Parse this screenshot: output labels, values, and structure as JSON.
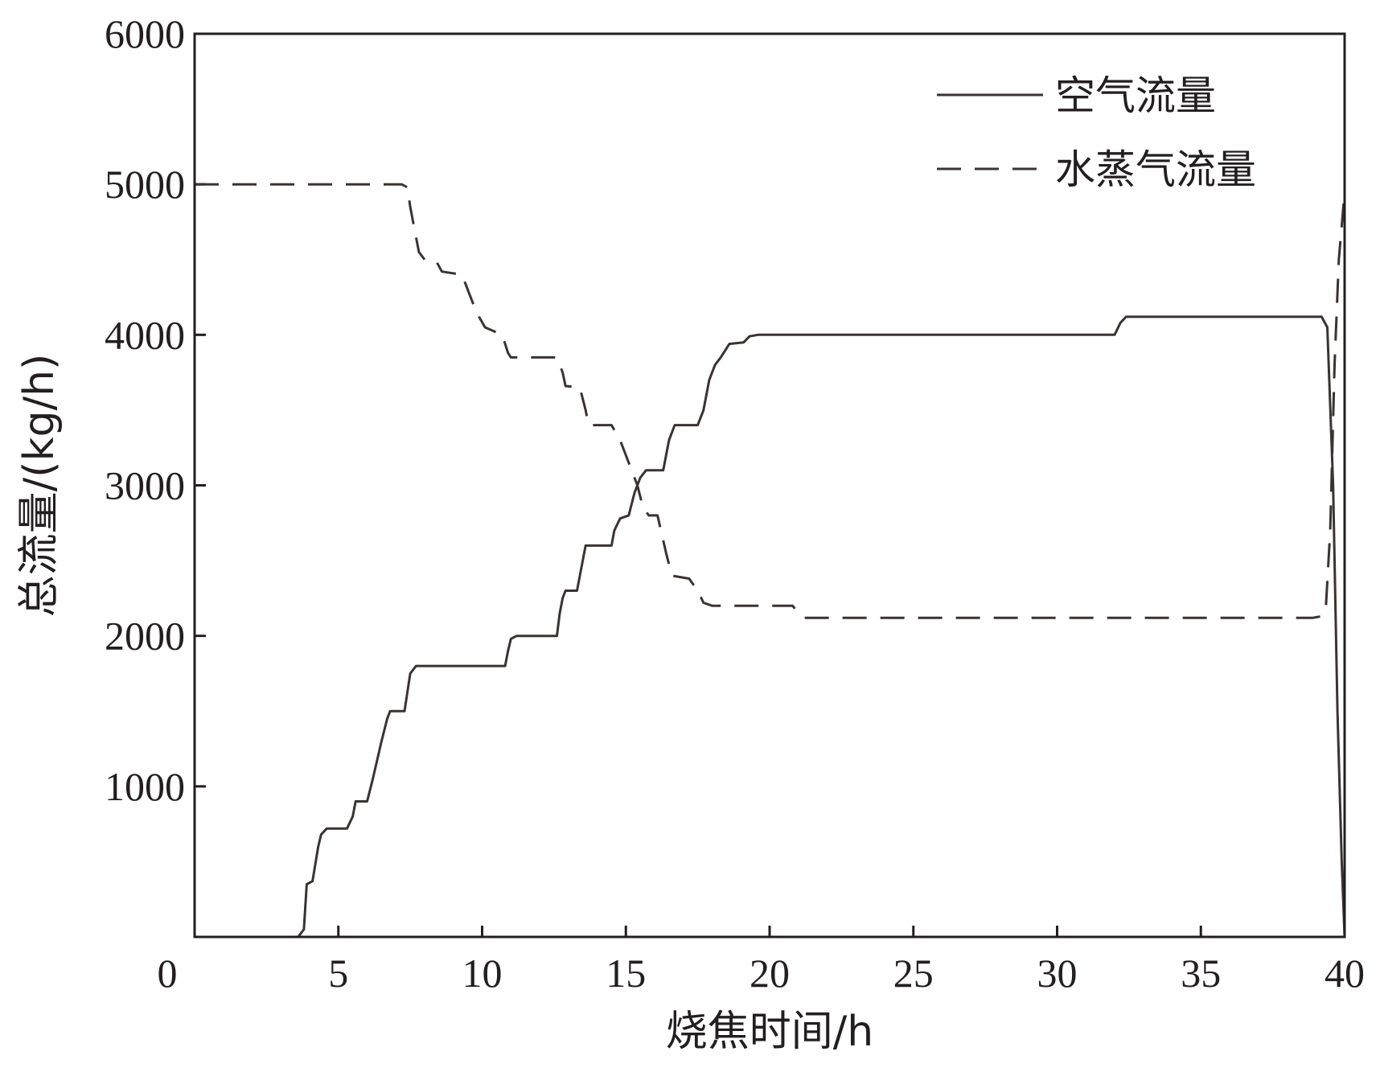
{
  "chart_data": {
    "type": "line",
    "title": "",
    "xlabel": "烧焦时间/h",
    "ylabel": "总流量/(kg/h)",
    "xlim": [
      0,
      40
    ],
    "ylim": [
      0,
      6000
    ],
    "x_ticks": [
      "0",
      "5",
      "10",
      "15",
      "20",
      "25",
      "30",
      "35",
      "40"
    ],
    "y_ticks": [
      "1000",
      "2000",
      "3000",
      "4000",
      "5000",
      "6000"
    ],
    "grid": false,
    "legend_position": "top-right",
    "series": [
      {
        "name": "空气流量",
        "style": "solid",
        "color": "#3a3331",
        "points": [
          [
            0,
            0
          ],
          [
            3.6,
            0
          ],
          [
            3.8,
            50
          ],
          [
            3.9,
            350
          ],
          [
            4.1,
            370
          ],
          [
            4.3,
            600
          ],
          [
            4.4,
            680
          ],
          [
            4.6,
            720
          ],
          [
            5.3,
            720
          ],
          [
            5.5,
            800
          ],
          [
            5.6,
            900
          ],
          [
            6.0,
            900
          ],
          [
            6.2,
            1050
          ],
          [
            6.5,
            1300
          ],
          [
            6.7,
            1450
          ],
          [
            6.8,
            1500
          ],
          [
            7.3,
            1500
          ],
          [
            7.5,
            1750
          ],
          [
            7.7,
            1800
          ],
          [
            10.8,
            1800
          ],
          [
            10.9,
            1900
          ],
          [
            11.0,
            1980
          ],
          [
            11.2,
            2000
          ],
          [
            12.6,
            2000
          ],
          [
            12.7,
            2150
          ],
          [
            12.8,
            2250
          ],
          [
            12.9,
            2300
          ],
          [
            13.3,
            2300
          ],
          [
            13.5,
            2500
          ],
          [
            13.6,
            2600
          ],
          [
            14.5,
            2600
          ],
          [
            14.6,
            2700
          ],
          [
            14.8,
            2780
          ],
          [
            15.1,
            2800
          ],
          [
            15.3,
            2950
          ],
          [
            15.5,
            3050
          ],
          [
            15.7,
            3100
          ],
          [
            16.3,
            3100
          ],
          [
            16.5,
            3300
          ],
          [
            16.7,
            3400
          ],
          [
            17.5,
            3400
          ],
          [
            17.7,
            3500
          ],
          [
            17.9,
            3700
          ],
          [
            18.1,
            3800
          ],
          [
            18.3,
            3850
          ],
          [
            18.6,
            3940
          ],
          [
            19.1,
            3950
          ],
          [
            19.3,
            3990
          ],
          [
            19.6,
            4000
          ],
          [
            32.0,
            4000
          ],
          [
            32.2,
            4080
          ],
          [
            32.4,
            4120
          ],
          [
            39.0,
            4120
          ],
          [
            39.2,
            4120
          ],
          [
            39.4,
            4050
          ],
          [
            39.6,
            3000
          ],
          [
            39.75,
            1500
          ],
          [
            39.9,
            500
          ],
          [
            40,
            0
          ]
        ]
      },
      {
        "name": "水蒸气流量",
        "style": "dashed",
        "color": "#3a3331",
        "points": [
          [
            0,
            5000
          ],
          [
            7.2,
            5000
          ],
          [
            7.4,
            4980
          ],
          [
            7.5,
            4850
          ],
          [
            7.6,
            4750
          ],
          [
            7.8,
            4550
          ],
          [
            8.0,
            4500
          ],
          [
            8.4,
            4490
          ],
          [
            8.6,
            4420
          ],
          [
            9.3,
            4400
          ],
          [
            9.5,
            4300
          ],
          [
            9.8,
            4150
          ],
          [
            10.1,
            4050
          ],
          [
            10.7,
            4000
          ],
          [
            10.9,
            3880
          ],
          [
            11.0,
            3850
          ],
          [
            12.6,
            3850
          ],
          [
            12.8,
            3750
          ],
          [
            12.9,
            3660
          ],
          [
            13.4,
            3650
          ],
          [
            13.6,
            3500
          ],
          [
            13.7,
            3400
          ],
          [
            14.5,
            3400
          ],
          [
            14.8,
            3300
          ],
          [
            15.0,
            3200
          ],
          [
            15.2,
            3100
          ],
          [
            15.4,
            3000
          ],
          [
            15.6,
            2850
          ],
          [
            15.8,
            2800
          ],
          [
            16.1,
            2800
          ],
          [
            16.4,
            2550
          ],
          [
            16.6,
            2400
          ],
          [
            17.2,
            2380
          ],
          [
            17.5,
            2300
          ],
          [
            17.7,
            2220
          ],
          [
            18.0,
            2200
          ],
          [
            20.8,
            2200
          ],
          [
            21.0,
            2150
          ],
          [
            21.2,
            2120
          ],
          [
            38.9,
            2120
          ],
          [
            39.2,
            2130
          ],
          [
            39.35,
            2200
          ],
          [
            39.5,
            2700
          ],
          [
            39.65,
            3800
          ],
          [
            39.8,
            4500
          ],
          [
            40,
            4950
          ]
        ]
      }
    ]
  }
}
